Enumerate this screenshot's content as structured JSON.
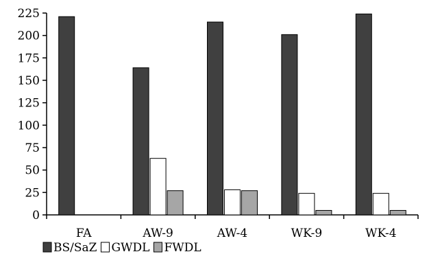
{
  "chart_data": {
    "type": "bar",
    "categories": [
      "FA",
      "AW-9",
      "AW-4",
      "WK-9",
      "WK-4"
    ],
    "series": [
      {
        "name": "BS/SaZ",
        "color": "#404040",
        "values": [
          221,
          164,
          215,
          201,
          224
        ]
      },
      {
        "name": "GWDL",
        "color": "#ffffff",
        "values": [
          0,
          63,
          28,
          24,
          24
        ]
      },
      {
        "name": "FWDL",
        "color": "#a6a6a6",
        "values": [
          0,
          27,
          27,
          5,
          5
        ]
      }
    ],
    "title": "",
    "xlabel": "",
    "ylabel": "",
    "ylim": [
      0,
      225
    ],
    "yticks": [
      0,
      25,
      50,
      75,
      100,
      125,
      150,
      175,
      200,
      225
    ],
    "grid": false,
    "legend": "bottom-left"
  }
}
